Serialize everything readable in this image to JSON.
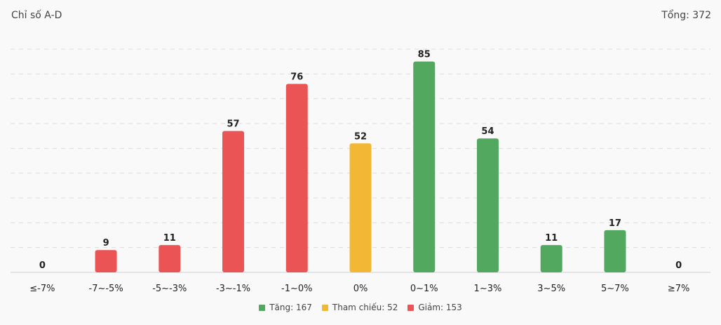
{
  "header": {
    "title": "Chỉ số A-D",
    "total": "Tổng: 372"
  },
  "legend": [
    {
      "label": "Tăng: 167",
      "color": "#52a85e"
    },
    {
      "label": "Tham chiếu: 52",
      "color": "#f2b835"
    },
    {
      "label": "Giảm: 153",
      "color": "#ea5455"
    }
  ],
  "chart_data": {
    "type": "bar",
    "categories": [
      "≤-7%",
      "-7~-5%",
      "-5~-3%",
      "-3~-1%",
      "-1~0%",
      "0%",
      "0~1%",
      "1~3%",
      "3~5%",
      "5~7%",
      "≥7%"
    ],
    "values": [
      0,
      9,
      11,
      57,
      76,
      52,
      85,
      54,
      11,
      17,
      0
    ],
    "colors": [
      "#ea5455",
      "#ea5455",
      "#ea5455",
      "#ea5455",
      "#ea5455",
      "#f2b835",
      "#52a85e",
      "#52a85e",
      "#52a85e",
      "#52a85e",
      "#52a85e"
    ],
    "ylim": [
      0,
      90
    ],
    "grid": true,
    "legend_position": "bottom"
  }
}
